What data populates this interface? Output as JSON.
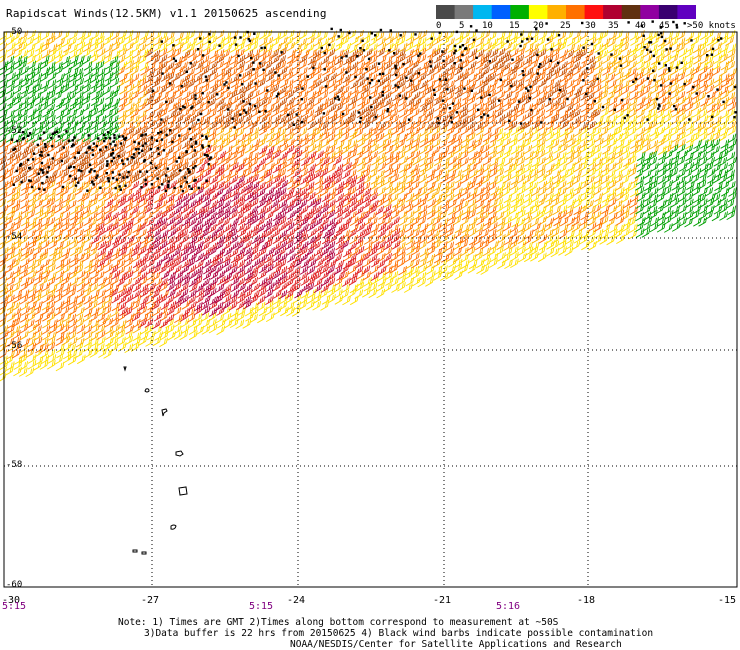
{
  "header": {
    "title": "Rapidscat Winds(12.5KM) v1.1 20150625 ascending"
  },
  "legend": {
    "colors": [
      "#4a4a4a",
      "#7a7a7a",
      "#00b7f0",
      "#0060ff",
      "#00b000",
      "#ffff00",
      "#ffb000",
      "#ff7000",
      "#ff1010",
      "#b00030",
      "#603010",
      "#9000a0",
      "#3a0070",
      "#6000c0"
    ],
    "labels": [
      "0",
      "5",
      "10",
      "15",
      "20",
      "25",
      "30",
      "35",
      "40",
      "45",
      ">50 knots"
    ]
  },
  "map": {
    "lat_labels": [
      "-50",
      "-52",
      "-54",
      "-56",
      "-58",
      "-60"
    ],
    "lon_labels": [
      "-30",
      "-27",
      "-24",
      "-21",
      "-18",
      "-15"
    ],
    "time_labels": [
      "5:15",
      "5:15",
      "5:16"
    ],
    "speed_colors": {
      "green": "#00a000",
      "yellow": "#ffe000",
      "gold": "#ffb000",
      "orange": "#ff7000",
      "darkorange": "#c85000",
      "red": "#e02020",
      "crimson": "#b00040",
      "contaminated": "#000000"
    }
  },
  "footer": {
    "note_line1": "Note: 1) Times are GMT 2)Times along bottom correspond to measurement at ~50S",
    "note_line2": "3)Data buffer is 22 hrs from 20150625 4) Black wind barbs indicate possible contamination",
    "note_line3": "NOAA/NESDIS/Center for Satellite Applications and Research"
  }
}
